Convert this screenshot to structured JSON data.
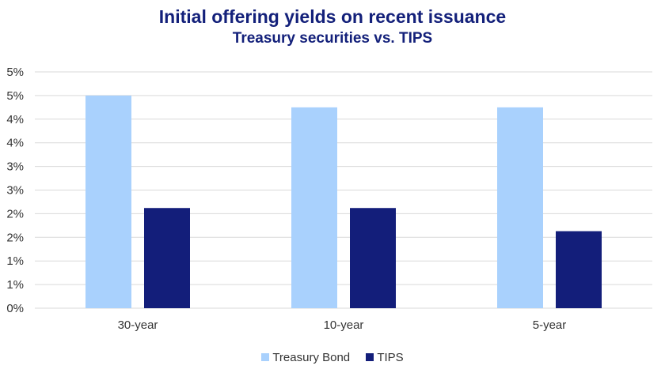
{
  "chart_data": {
    "type": "bar",
    "title": "Initial offering yields on recent issuance",
    "subtitle": "Treasury securities vs. TIPS",
    "categories": [
      "30-year",
      "10-year",
      "5-year"
    ],
    "series": [
      {
        "name": "Treasury Bond",
        "color": "#a9d1fd",
        "values": [
          4.5,
          4.25,
          4.25
        ]
      },
      {
        "name": "TIPS",
        "color": "#131e7a",
        "values": [
          2.12,
          2.12,
          1.63
        ]
      }
    ],
    "y_ticks": [
      0,
      0.5,
      1,
      1.5,
      2,
      2.5,
      3,
      3.5,
      4,
      4.5,
      5
    ],
    "y_tick_labels": [
      "0%",
      "1%",
      "1%",
      "2%",
      "2%",
      "3%",
      "3%",
      "4%",
      "4%",
      "5%",
      "5%"
    ],
    "ylim": [
      0,
      5
    ],
    "xlabel": "",
    "ylabel": "",
    "grid": true,
    "legend": "bottom-center"
  }
}
